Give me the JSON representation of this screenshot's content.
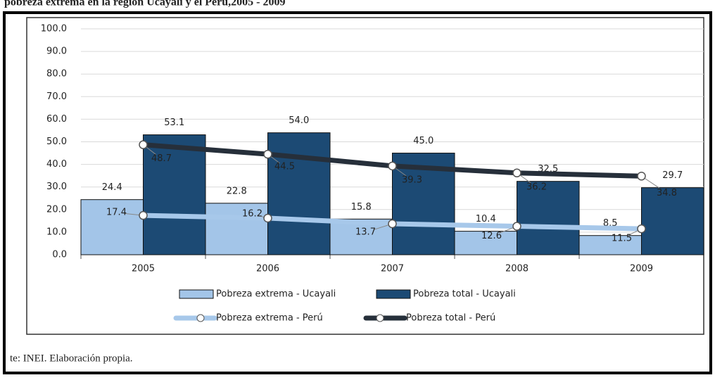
{
  "chart_data": {
    "type": "bar",
    "title": "pobreza extrema en la región Ucayali y el Perú,2005 - 2009",
    "source": "te: INEI. Elaboración propia.",
    "categories": [
      "2005",
      "2006",
      "2007",
      "2008",
      "2009"
    ],
    "series": [
      {
        "name": "Pobreza extrema - Ucayali",
        "type": "bar",
        "color": "#a3c5e8",
        "values": [
          24.4,
          22.8,
          15.8,
          10.4,
          8.5
        ],
        "value_labels": [
          "24.4",
          "22.8",
          "15.8",
          "10.4",
          "8.5"
        ]
      },
      {
        "name": "Pobreza total - Ucayali",
        "type": "bar",
        "color": "#1c4a74",
        "values": [
          53.1,
          54.0,
          45.0,
          32.5,
          29.7
        ],
        "value_labels": [
          "53.1",
          "54.0",
          "45.0",
          "32.5",
          "29.7"
        ]
      },
      {
        "name": "Pobreza extrema - Perú",
        "type": "line",
        "color": "#a7c8ea",
        "values": [
          17.4,
          16.2,
          13.7,
          12.6,
          11.5
        ],
        "value_labels": [
          "17.4",
          "16.2",
          "13.7",
          "12.6",
          "11.5"
        ]
      },
      {
        "name": "Pobreza total - Perú",
        "type": "line",
        "color": "#262f3a",
        "values": [
          48.7,
          44.5,
          39.3,
          36.2,
          34.8
        ],
        "value_labels": [
          "48.7",
          "44.5",
          "39.3",
          "36.2",
          "34.8"
        ]
      }
    ],
    "ylim": [
      0,
      100
    ],
    "yticks": [
      {
        "value": 0,
        "label": "0.0"
      },
      {
        "value": 10,
        "label": "10.0"
      },
      {
        "value": 20,
        "label": "20.0"
      },
      {
        "value": 30,
        "label": "30.0"
      },
      {
        "value": 40,
        "label": "40.0"
      },
      {
        "value": 50,
        "label": "50.0"
      },
      {
        "value": 60,
        "label": "60.0"
      },
      {
        "value": 70,
        "label": "70.0"
      },
      {
        "value": 80,
        "label": "80.0"
      },
      {
        "value": 90,
        "label": "90.0"
      },
      {
        "value": 100,
        "label": "100.0"
      }
    ],
    "grid": true
  }
}
